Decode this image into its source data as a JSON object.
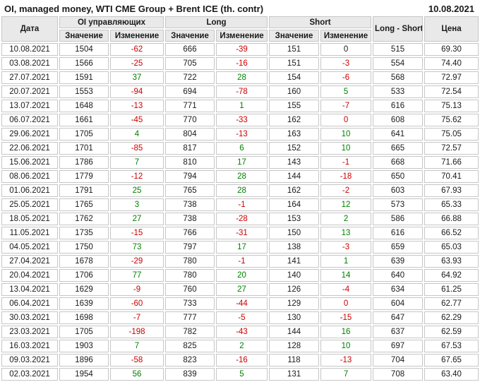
{
  "report": {
    "title": "OI, managed money, WTI CME Group + Brent ICE (th. contr)",
    "date": "10.08.2021"
  },
  "colors": {
    "positive": "#008000",
    "negative": "#cc0000",
    "header_bg": "#e9e9e9",
    "border": "#c6c6c6",
    "text": "#1a1a1a"
  },
  "chart_data": {
    "type": "table",
    "title": "OI, managed money, WTI CME Group + Brent ICE (th. contr)",
    "report_date": "10.08.2021",
    "column_groups": [
      {
        "label": "Дата"
      },
      {
        "label": "OI управляющих"
      },
      {
        "label": "Long"
      },
      {
        "label": "Short"
      },
      {
        "label": "Long - Short"
      },
      {
        "label": "Цена"
      }
    ],
    "sub_headers": {
      "value": "Значение",
      "change": "Изменение"
    },
    "rows": [
      {
        "date": "10.08.2021",
        "oi": "1504",
        "oi_chg": "-62",
        "oi_chg_c": "neg",
        "long": "666",
        "long_chg": "-39",
        "long_chg_c": "neg",
        "short": "151",
        "short_chg": "0",
        "short_chg_c": "neu",
        "ls": "515",
        "price": "69.30"
      },
      {
        "date": "03.08.2021",
        "oi": "1566",
        "oi_chg": "-25",
        "oi_chg_c": "neg",
        "long": "705",
        "long_chg": "-16",
        "long_chg_c": "neg",
        "short": "151",
        "short_chg": "-3",
        "short_chg_c": "neg",
        "ls": "554",
        "price": "74.40"
      },
      {
        "date": "27.07.2021",
        "oi": "1591",
        "oi_chg": "37",
        "oi_chg_c": "pos",
        "long": "722",
        "long_chg": "28",
        "long_chg_c": "pos",
        "short": "154",
        "short_chg": "-6",
        "short_chg_c": "neg",
        "ls": "568",
        "price": "72.97"
      },
      {
        "date": "20.07.2021",
        "oi": "1553",
        "oi_chg": "-94",
        "oi_chg_c": "neg",
        "long": "694",
        "long_chg": "-78",
        "long_chg_c": "neg",
        "short": "160",
        "short_chg": "5",
        "short_chg_c": "pos",
        "ls": "533",
        "price": "72.54"
      },
      {
        "date": "13.07.2021",
        "oi": "1648",
        "oi_chg": "-13",
        "oi_chg_c": "neg",
        "long": "771",
        "long_chg": "1",
        "long_chg_c": "pos",
        "short": "155",
        "short_chg": "-7",
        "short_chg_c": "neg",
        "ls": "616",
        "price": "75.13"
      },
      {
        "date": "06.07.2021",
        "oi": "1661",
        "oi_chg": "-45",
        "oi_chg_c": "neg",
        "long": "770",
        "long_chg": "-33",
        "long_chg_c": "neg",
        "short": "162",
        "short_chg": "0",
        "short_chg_c": "neg",
        "ls": "608",
        "price": "75.62"
      },
      {
        "date": "29.06.2021",
        "oi": "1705",
        "oi_chg": "4",
        "oi_chg_c": "pos",
        "long": "804",
        "long_chg": "-13",
        "long_chg_c": "neg",
        "short": "163",
        "short_chg": "10",
        "short_chg_c": "pos",
        "ls": "641",
        "price": "75.05"
      },
      {
        "date": "22.06.2021",
        "oi": "1701",
        "oi_chg": "-85",
        "oi_chg_c": "neg",
        "long": "817",
        "long_chg": "6",
        "long_chg_c": "pos",
        "short": "152",
        "short_chg": "10",
        "short_chg_c": "pos",
        "ls": "665",
        "price": "72.57"
      },
      {
        "date": "15.06.2021",
        "oi": "1786",
        "oi_chg": "7",
        "oi_chg_c": "pos",
        "long": "810",
        "long_chg": "17",
        "long_chg_c": "pos",
        "short": "143",
        "short_chg": "-1",
        "short_chg_c": "neg",
        "ls": "668",
        "price": "71.66"
      },
      {
        "date": "08.06.2021",
        "oi": "1779",
        "oi_chg": "-12",
        "oi_chg_c": "neg",
        "long": "794",
        "long_chg": "28",
        "long_chg_c": "pos",
        "short": "144",
        "short_chg": "-18",
        "short_chg_c": "neg",
        "ls": "650",
        "price": "70.41"
      },
      {
        "date": "01.06.2021",
        "oi": "1791",
        "oi_chg": "25",
        "oi_chg_c": "pos",
        "long": "765",
        "long_chg": "28",
        "long_chg_c": "pos",
        "short": "162",
        "short_chg": "-2",
        "short_chg_c": "neg",
        "ls": "603",
        "price": "67.93"
      },
      {
        "date": "25.05.2021",
        "oi": "1765",
        "oi_chg": "3",
        "oi_chg_c": "pos",
        "long": "738",
        "long_chg": "-1",
        "long_chg_c": "neg",
        "short": "164",
        "short_chg": "12",
        "short_chg_c": "pos",
        "ls": "573",
        "price": "65.33"
      },
      {
        "date": "18.05.2021",
        "oi": "1762",
        "oi_chg": "27",
        "oi_chg_c": "pos",
        "long": "738",
        "long_chg": "-28",
        "long_chg_c": "neg",
        "short": "153",
        "short_chg": "2",
        "short_chg_c": "pos",
        "ls": "586",
        "price": "66.88"
      },
      {
        "date": "11.05.2021",
        "oi": "1735",
        "oi_chg": "-15",
        "oi_chg_c": "neg",
        "long": "766",
        "long_chg": "-31",
        "long_chg_c": "neg",
        "short": "150",
        "short_chg": "13",
        "short_chg_c": "pos",
        "ls": "616",
        "price": "66.52"
      },
      {
        "date": "04.05.2021",
        "oi": "1750",
        "oi_chg": "73",
        "oi_chg_c": "pos",
        "long": "797",
        "long_chg": "17",
        "long_chg_c": "pos",
        "short": "138",
        "short_chg": "-3",
        "short_chg_c": "neg",
        "ls": "659",
        "price": "65.03"
      },
      {
        "date": "27.04.2021",
        "oi": "1678",
        "oi_chg": "-29",
        "oi_chg_c": "neg",
        "long": "780",
        "long_chg": "-1",
        "long_chg_c": "neg",
        "short": "141",
        "short_chg": "1",
        "short_chg_c": "pos",
        "ls": "639",
        "price": "63.93"
      },
      {
        "date": "20.04.2021",
        "oi": "1706",
        "oi_chg": "77",
        "oi_chg_c": "pos",
        "long": "780",
        "long_chg": "20",
        "long_chg_c": "pos",
        "short": "140",
        "short_chg": "14",
        "short_chg_c": "pos",
        "ls": "640",
        "price": "64.92"
      },
      {
        "date": "13.04.2021",
        "oi": "1629",
        "oi_chg": "-9",
        "oi_chg_c": "neg",
        "long": "760",
        "long_chg": "27",
        "long_chg_c": "pos",
        "short": "126",
        "short_chg": "-4",
        "short_chg_c": "neg",
        "ls": "634",
        "price": "61.25"
      },
      {
        "date": "06.04.2021",
        "oi": "1639",
        "oi_chg": "-60",
        "oi_chg_c": "neg",
        "long": "733",
        "long_chg": "-44",
        "long_chg_c": "neg",
        "short": "129",
        "short_chg": "0",
        "short_chg_c": "neg",
        "ls": "604",
        "price": "62.77"
      },
      {
        "date": "30.03.2021",
        "oi": "1698",
        "oi_chg": "-7",
        "oi_chg_c": "neg",
        "long": "777",
        "long_chg": "-5",
        "long_chg_c": "neg",
        "short": "130",
        "short_chg": "-15",
        "short_chg_c": "neg",
        "ls": "647",
        "price": "62.29"
      },
      {
        "date": "23.03.2021",
        "oi": "1705",
        "oi_chg": "-198",
        "oi_chg_c": "neg",
        "long": "782",
        "long_chg": "-43",
        "long_chg_c": "neg",
        "short": "144",
        "short_chg": "16",
        "short_chg_c": "pos",
        "ls": "637",
        "price": "62.59"
      },
      {
        "date": "16.03.2021",
        "oi": "1903",
        "oi_chg": "7",
        "oi_chg_c": "pos",
        "long": "825",
        "long_chg": "2",
        "long_chg_c": "pos",
        "short": "128",
        "short_chg": "10",
        "short_chg_c": "pos",
        "ls": "697",
        "price": "67.53"
      },
      {
        "date": "09.03.2021",
        "oi": "1896",
        "oi_chg": "-58",
        "oi_chg_c": "neg",
        "long": "823",
        "long_chg": "-16",
        "long_chg_c": "neg",
        "short": "118",
        "short_chg": "-13",
        "short_chg_c": "neg",
        "ls": "704",
        "price": "67.65"
      },
      {
        "date": "02.03.2021",
        "oi": "1954",
        "oi_chg": "56",
        "oi_chg_c": "pos",
        "long": "839",
        "long_chg": "5",
        "long_chg_c": "pos",
        "short": "131",
        "short_chg": "7",
        "short_chg_c": "pos",
        "ls": "708",
        "price": "63.40"
      }
    ]
  }
}
